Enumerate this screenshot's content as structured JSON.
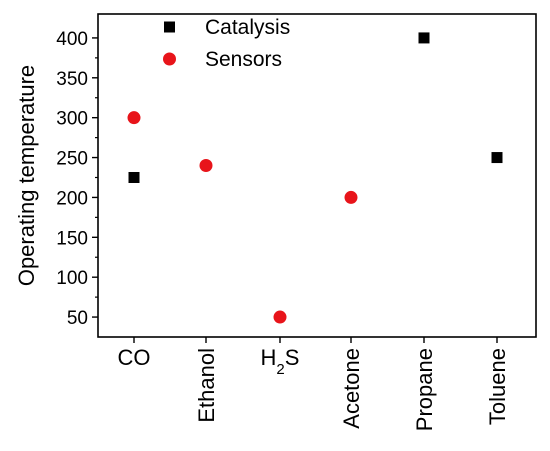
{
  "chart_data": {
    "type": "scatter",
    "ylabel": "Operating temperature",
    "categories": [
      {
        "label": "CO"
      },
      {
        "label": "Ethanol"
      },
      {
        "label": "H",
        "sub": "2",
        "suffix": "S"
      },
      {
        "label": "Acetone"
      },
      {
        "label": "Propane"
      },
      {
        "label": "Toluene"
      }
    ],
    "yticks": [
      50,
      100,
      150,
      200,
      250,
      300,
      350,
      400
    ],
    "ylim": [
      25,
      430
    ],
    "legend_position": "top-left",
    "series": [
      {
        "name": "Catalysis",
        "marker": "square",
        "color": "#000000",
        "points": [
          {
            "x": "CO",
            "y": 225
          },
          {
            "x": "Propane",
            "y": 400
          },
          {
            "x": "Toluene",
            "y": 250
          }
        ]
      },
      {
        "name": "Sensors",
        "marker": "circle",
        "color": "#e8141a",
        "points": [
          {
            "x": "CO",
            "y": 300
          },
          {
            "x": "Ethanol",
            "y": 240
          },
          {
            "x": "H2S",
            "y": 50
          },
          {
            "x": "Acetone",
            "y": 200
          }
        ]
      }
    ]
  }
}
